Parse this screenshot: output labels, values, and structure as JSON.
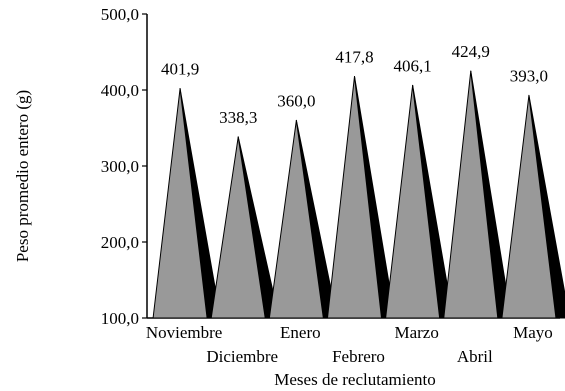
{
  "chart_data": {
    "type": "bar",
    "bar_style": "3d-pyramid",
    "title": "",
    "xlabel": "Meses de reclutamiento",
    "ylabel": "Peso promedio entero (g)",
    "ylim": [
      100,
      500
    ],
    "yticks": [
      "100,0",
      "200,0",
      "300,0",
      "400,0",
      "500,0"
    ],
    "ytick_values": [
      100,
      200,
      300,
      400,
      500
    ],
    "categories": [
      "Noviembre",
      "Diciembre",
      "Enero",
      "Febrero",
      "Marzo",
      "Abril",
      "Mayo"
    ],
    "values": [
      401.9,
      338.3,
      360.0,
      417.8,
      406.1,
      424.9,
      393.0
    ],
    "value_labels": [
      "401,9",
      "338,3",
      "360,0",
      "417,8",
      "406,1",
      "424,9",
      "393,0"
    ],
    "grid": false,
    "legend": "none",
    "colors": {
      "face": "#999999",
      "side": "#000000",
      "axis": "#000000"
    }
  }
}
